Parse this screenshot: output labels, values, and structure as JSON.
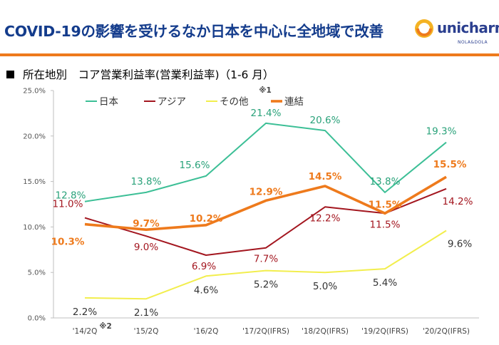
{
  "header": {
    "title": "COVID-19の影響を受けるなか日本を中心に全地域で改善",
    "logo_text": "unicharm",
    "logo_sub": "NOLA&DOLA",
    "accent_color": "#ee7a1c",
    "title_color": "#143c8c"
  },
  "section": {
    "subtitle": "所在地別　コア営業利益率(営業利益率)（1-6 月）"
  },
  "chart_data": {
    "type": "line",
    "categories": [
      "'14/2Q",
      "'15/2Q",
      "'16/2Q",
      "'17/2Q(IFRS)",
      "'18/2Q(IFRS)",
      "'19/2Q(IFRS)",
      "'20/2Q(IFRS)"
    ],
    "ylim": [
      0,
      25
    ],
    "yticks": [
      "0.0%",
      "5.0%",
      "10.0%",
      "15.0%",
      "20.0%",
      "25.0%"
    ],
    "grid": false,
    "legend_position": "top",
    "series": [
      {
        "name": "日本",
        "color": "#3cbf96",
        "values": [
          12.8,
          13.8,
          15.6,
          21.4,
          20.6,
          13.8,
          19.3
        ],
        "labels": [
          "12.8%",
          "13.8%",
          "15.6%",
          "21.4%",
          "20.6%",
          "13.8%",
          "19.3%"
        ],
        "label_color": "#2aa27a"
      },
      {
        "name": "アジア",
        "color": "#a3161f",
        "values": [
          11.0,
          9.0,
          6.9,
          7.7,
          12.2,
          11.5,
          14.2
        ],
        "labels": [
          "11.0%",
          "9.0%",
          "6.9%",
          "7.7%",
          "12.2%",
          "11.5%",
          "14.2%"
        ],
        "label_color": "#a3161f"
      },
      {
        "name": "その他",
        "color": "#f2ee4d",
        "values": [
          2.2,
          2.1,
          4.6,
          5.2,
          5.0,
          5.4,
          9.6
        ],
        "labels": [
          "2.2%",
          "2.1%",
          "4.6%",
          "5.2%",
          "5.0%",
          "5.4%",
          "9.6%"
        ],
        "label_color": "#333333"
      },
      {
        "name": "連結",
        "color": "#ee7a1c",
        "values": [
          10.3,
          9.7,
          10.2,
          12.9,
          14.5,
          11.5,
          15.5
        ],
        "labels": [
          "10.3%",
          "9.7%",
          "10.2%",
          "12.9%",
          "14.5%",
          "11.5%",
          "15.5%"
        ],
        "label_color": "#ee7a1c"
      }
    ],
    "annotations": {
      "legend_note": "※1",
      "xtick_note": "※2"
    }
  }
}
